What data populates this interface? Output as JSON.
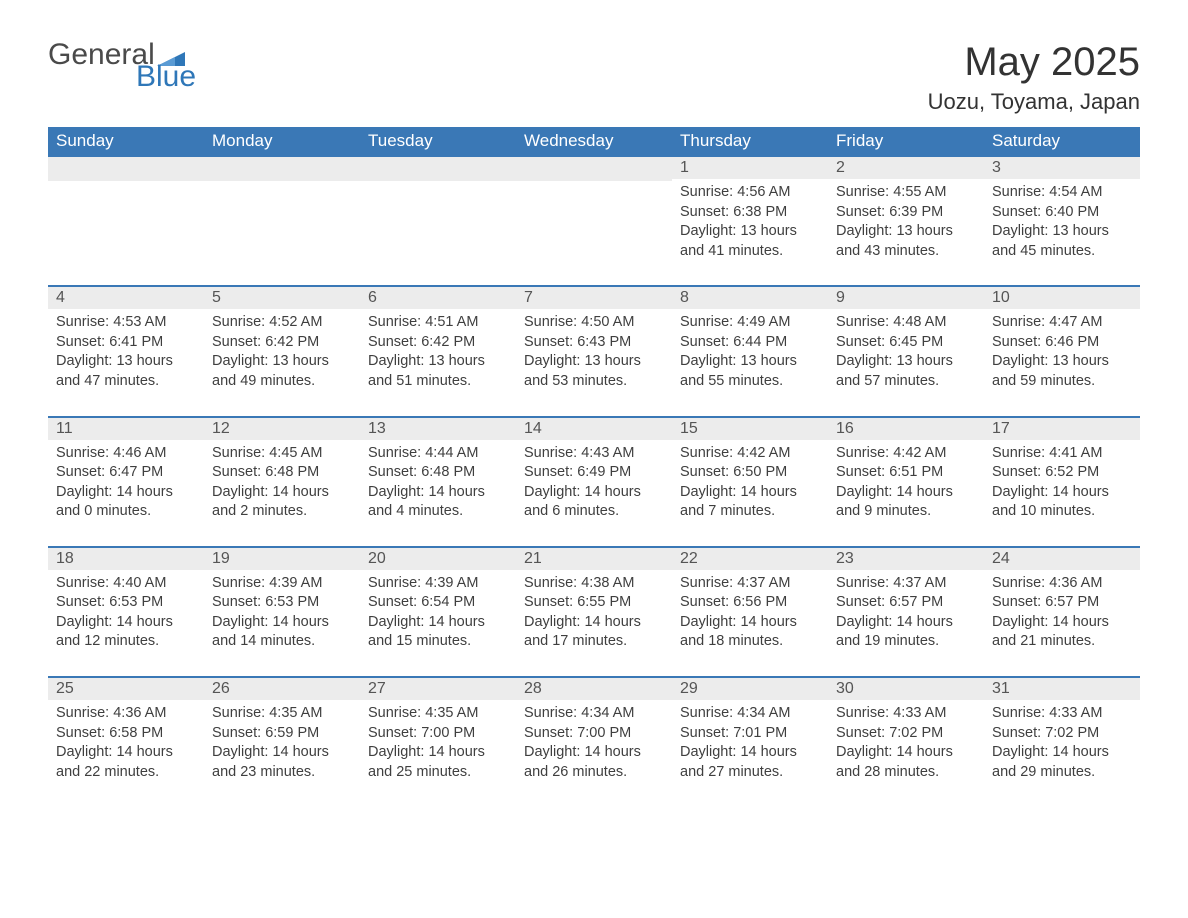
{
  "logo": {
    "general": "General",
    "blue": "Blue"
  },
  "title": "May 2025",
  "location": "Uozu, Toyama, Japan",
  "colors": {
    "header_bg": "#3a78b6",
    "header_text": "#ffffff",
    "daynum_bg": "#ececec",
    "border": "#3a78b6",
    "logo_blue": "#2f77b8",
    "text": "#333333"
  },
  "day_names": [
    "Sunday",
    "Monday",
    "Tuesday",
    "Wednesday",
    "Thursday",
    "Friday",
    "Saturday"
  ],
  "weeks": [
    [
      null,
      null,
      null,
      null,
      {
        "n": "1",
        "sunrise": "Sunrise: 4:56 AM",
        "sunset": "Sunset: 6:38 PM",
        "daylight": "Daylight: 13 hours and 41 minutes."
      },
      {
        "n": "2",
        "sunrise": "Sunrise: 4:55 AM",
        "sunset": "Sunset: 6:39 PM",
        "daylight": "Daylight: 13 hours and 43 minutes."
      },
      {
        "n": "3",
        "sunrise": "Sunrise: 4:54 AM",
        "sunset": "Sunset: 6:40 PM",
        "daylight": "Daylight: 13 hours and 45 minutes."
      }
    ],
    [
      {
        "n": "4",
        "sunrise": "Sunrise: 4:53 AM",
        "sunset": "Sunset: 6:41 PM",
        "daylight": "Daylight: 13 hours and 47 minutes."
      },
      {
        "n": "5",
        "sunrise": "Sunrise: 4:52 AM",
        "sunset": "Sunset: 6:42 PM",
        "daylight": "Daylight: 13 hours and 49 minutes."
      },
      {
        "n": "6",
        "sunrise": "Sunrise: 4:51 AM",
        "sunset": "Sunset: 6:42 PM",
        "daylight": "Daylight: 13 hours and 51 minutes."
      },
      {
        "n": "7",
        "sunrise": "Sunrise: 4:50 AM",
        "sunset": "Sunset: 6:43 PM",
        "daylight": "Daylight: 13 hours and 53 minutes."
      },
      {
        "n": "8",
        "sunrise": "Sunrise: 4:49 AM",
        "sunset": "Sunset: 6:44 PM",
        "daylight": "Daylight: 13 hours and 55 minutes."
      },
      {
        "n": "9",
        "sunrise": "Sunrise: 4:48 AM",
        "sunset": "Sunset: 6:45 PM",
        "daylight": "Daylight: 13 hours and 57 minutes."
      },
      {
        "n": "10",
        "sunrise": "Sunrise: 4:47 AM",
        "sunset": "Sunset: 6:46 PM",
        "daylight": "Daylight: 13 hours and 59 minutes."
      }
    ],
    [
      {
        "n": "11",
        "sunrise": "Sunrise: 4:46 AM",
        "sunset": "Sunset: 6:47 PM",
        "daylight": "Daylight: 14 hours and 0 minutes."
      },
      {
        "n": "12",
        "sunrise": "Sunrise: 4:45 AM",
        "sunset": "Sunset: 6:48 PM",
        "daylight": "Daylight: 14 hours and 2 minutes."
      },
      {
        "n": "13",
        "sunrise": "Sunrise: 4:44 AM",
        "sunset": "Sunset: 6:48 PM",
        "daylight": "Daylight: 14 hours and 4 minutes."
      },
      {
        "n": "14",
        "sunrise": "Sunrise: 4:43 AM",
        "sunset": "Sunset: 6:49 PM",
        "daylight": "Daylight: 14 hours and 6 minutes."
      },
      {
        "n": "15",
        "sunrise": "Sunrise: 4:42 AM",
        "sunset": "Sunset: 6:50 PM",
        "daylight": "Daylight: 14 hours and 7 minutes."
      },
      {
        "n": "16",
        "sunrise": "Sunrise: 4:42 AM",
        "sunset": "Sunset: 6:51 PM",
        "daylight": "Daylight: 14 hours and 9 minutes."
      },
      {
        "n": "17",
        "sunrise": "Sunrise: 4:41 AM",
        "sunset": "Sunset: 6:52 PM",
        "daylight": "Daylight: 14 hours and 10 minutes."
      }
    ],
    [
      {
        "n": "18",
        "sunrise": "Sunrise: 4:40 AM",
        "sunset": "Sunset: 6:53 PM",
        "daylight": "Daylight: 14 hours and 12 minutes."
      },
      {
        "n": "19",
        "sunrise": "Sunrise: 4:39 AM",
        "sunset": "Sunset: 6:53 PM",
        "daylight": "Daylight: 14 hours and 14 minutes."
      },
      {
        "n": "20",
        "sunrise": "Sunrise: 4:39 AM",
        "sunset": "Sunset: 6:54 PM",
        "daylight": "Daylight: 14 hours and 15 minutes."
      },
      {
        "n": "21",
        "sunrise": "Sunrise: 4:38 AM",
        "sunset": "Sunset: 6:55 PM",
        "daylight": "Daylight: 14 hours and 17 minutes."
      },
      {
        "n": "22",
        "sunrise": "Sunrise: 4:37 AM",
        "sunset": "Sunset: 6:56 PM",
        "daylight": "Daylight: 14 hours and 18 minutes."
      },
      {
        "n": "23",
        "sunrise": "Sunrise: 4:37 AM",
        "sunset": "Sunset: 6:57 PM",
        "daylight": "Daylight: 14 hours and 19 minutes."
      },
      {
        "n": "24",
        "sunrise": "Sunrise: 4:36 AM",
        "sunset": "Sunset: 6:57 PM",
        "daylight": "Daylight: 14 hours and 21 minutes."
      }
    ],
    [
      {
        "n": "25",
        "sunrise": "Sunrise: 4:36 AM",
        "sunset": "Sunset: 6:58 PM",
        "daylight": "Daylight: 14 hours and 22 minutes."
      },
      {
        "n": "26",
        "sunrise": "Sunrise: 4:35 AM",
        "sunset": "Sunset: 6:59 PM",
        "daylight": "Daylight: 14 hours and 23 minutes."
      },
      {
        "n": "27",
        "sunrise": "Sunrise: 4:35 AM",
        "sunset": "Sunset: 7:00 PM",
        "daylight": "Daylight: 14 hours and 25 minutes."
      },
      {
        "n": "28",
        "sunrise": "Sunrise: 4:34 AM",
        "sunset": "Sunset: 7:00 PM",
        "daylight": "Daylight: 14 hours and 26 minutes."
      },
      {
        "n": "29",
        "sunrise": "Sunrise: 4:34 AM",
        "sunset": "Sunset: 7:01 PM",
        "daylight": "Daylight: 14 hours and 27 minutes."
      },
      {
        "n": "30",
        "sunrise": "Sunrise: 4:33 AM",
        "sunset": "Sunset: 7:02 PM",
        "daylight": "Daylight: 14 hours and 28 minutes."
      },
      {
        "n": "31",
        "sunrise": "Sunrise: 4:33 AM",
        "sunset": "Sunset: 7:02 PM",
        "daylight": "Daylight: 14 hours and 29 minutes."
      }
    ]
  ]
}
